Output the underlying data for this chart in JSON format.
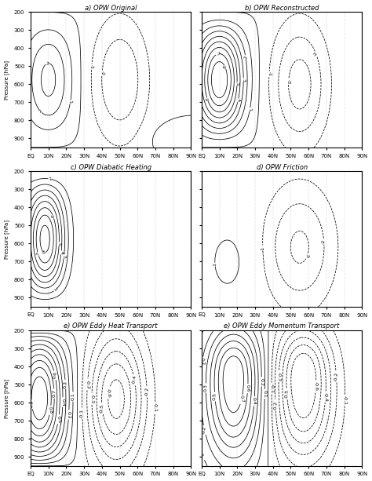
{
  "titles": [
    "a) OPW Original",
    "b) OPW Reconstructed",
    "c) OPW Diabatic Heating",
    "d) OPW Friction",
    "e) OPW Eddy Heat Transport",
    "e) OPW Eddy Momentum Transport"
  ],
  "pressure_ticks": [
    200,
    300,
    400,
    500,
    600,
    700,
    800,
    900
  ],
  "lat_ticks": [
    "EQ",
    "10N",
    "20N",
    "30N",
    "40N",
    "50N",
    "60N",
    "70N",
    "80N",
    "90N"
  ],
  "lat_values": [
    0,
    10,
    20,
    30,
    40,
    50,
    60,
    70,
    80,
    90
  ],
  "ylabel": "Pressure [hPa]",
  "figsize": [
    4.74,
    6.13
  ],
  "dpi": 100,
  "background_color": "#ffffff",
  "ylim_bottom": 950,
  "ylim_top": 200,
  "xlim": [
    0,
    90
  ],
  "contour_lw": 0.55,
  "label_fontsize": 4.5,
  "title_fontsize": 6,
  "tick_fontsize": 5,
  "ylabel_fontsize": 5
}
